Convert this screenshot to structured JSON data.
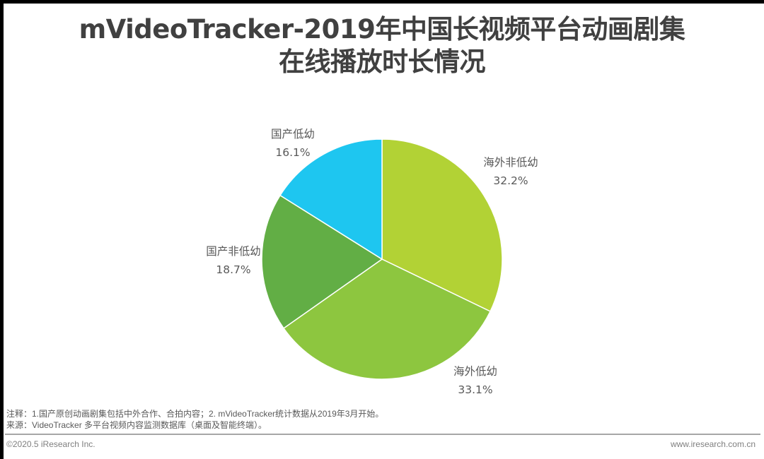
{
  "title": {
    "line1": "mVideoTracker-2019年中国长视频平台动画剧集",
    "line2": "在线播放时长情况"
  },
  "labels": [
    {
      "name": "海外非低幼",
      "value": "32.2%"
    },
    {
      "name": "海外低幼",
      "value": "33.1%"
    },
    {
      "name": "国产非低幼",
      "value": "18.7%"
    },
    {
      "name": "国产低幼",
      "value": "16.1%"
    }
  ],
  "footer": {
    "note": "注释：1.国产原创动画剧集包括中外合作、合拍内容；2. mVideoTracker统计数据从2019年3月开始。",
    "source": "来源：VideoTracker 多平台视频内容监测数据库（桌面及智能终端）。",
    "copyright": "©2020.5 iResearch Inc.",
    "website": "www.iresearch.com.cn"
  },
  "chart_data": {
    "type": "pie",
    "title": "mVideoTracker-2019年中国长视频平台动画剧集在线播放时长情况",
    "categories": [
      "海外非低幼",
      "海外低幼",
      "国产非低幼",
      "国产低幼"
    ],
    "values": [
      32.2,
      33.1,
      18.7,
      16.1
    ],
    "unit": "%",
    "colors": [
      "#b2d235",
      "#8dc63f",
      "#62ae45",
      "#1ec6f0"
    ],
    "start_angle": "12 o'clock",
    "direction": "clockwise",
    "legend": "none (data labels outside slices)"
  }
}
